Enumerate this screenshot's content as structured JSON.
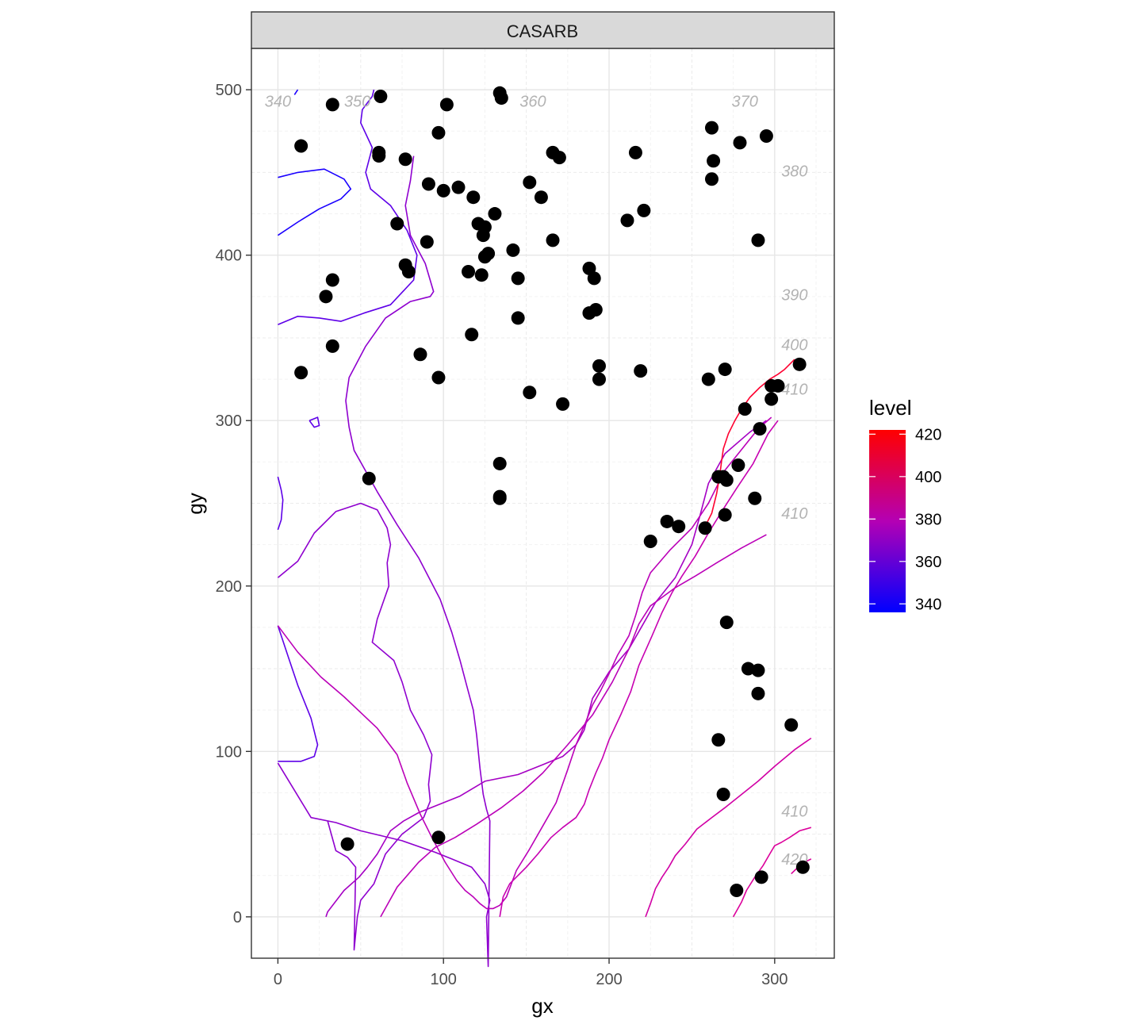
{
  "chart_data": {
    "type": "scatter",
    "facet_title": "CASARB",
    "xlabel": "gx",
    "ylabel": "gy",
    "xlim": [
      -16,
      336
    ],
    "ylim": [
      -25,
      525
    ],
    "x_ticks": [
      0,
      100,
      200,
      300
    ],
    "y_ticks": [
      0,
      100,
      200,
      300,
      400,
      500
    ],
    "x_tick_labels": [
      "0",
      "100",
      "200",
      "300"
    ],
    "y_tick_labels": [
      "0",
      "100",
      "200",
      "300",
      "400",
      "500"
    ],
    "grid": true,
    "legend": {
      "title": "level",
      "placement": "right",
      "min": 336,
      "max": 422,
      "ticks": [
        340,
        360,
        380,
        400,
        420
      ],
      "tick_labels": [
        "340",
        "360",
        "380",
        "400",
        "420"
      ],
      "color_low": "#0000ff",
      "color_high": "#ff0000"
    },
    "points": {
      "color": "#000000",
      "x": [
        14,
        33,
        62,
        102,
        134,
        135,
        97,
        61,
        61,
        77,
        91,
        100,
        109,
        118,
        131,
        121,
        125,
        124,
        125,
        127,
        72,
        77,
        79,
        90,
        33,
        29,
        115,
        123,
        134,
        142,
        145,
        117,
        33,
        86,
        97,
        14,
        55,
        134,
        134,
        145,
        152,
        159,
        166,
        170,
        172,
        166,
        152,
        188,
        191,
        192,
        188,
        194,
        194,
        211,
        216,
        221,
        219,
        262,
        263,
        262,
        279,
        295,
        290,
        260,
        270,
        298,
        302,
        298,
        315,
        282,
        291,
        278,
        266,
        269,
        271,
        288,
        270,
        235,
        242,
        258,
        225,
        271,
        284,
        290,
        290,
        310,
        266,
        269,
        42,
        97,
        277,
        292,
        317
      ],
      "y": [
        466,
        491,
        496,
        491,
        498,
        495,
        474,
        462,
        460,
        458,
        443,
        439,
        441,
        435,
        425,
        419,
        417,
        412,
        399,
        401,
        419,
        394,
        390,
        408,
        385,
        375,
        390,
        388,
        274,
        403,
        386,
        352,
        345,
        340,
        326,
        329,
        265,
        254,
        253,
        362,
        317,
        435,
        462,
        459,
        310,
        409,
        444,
        392,
        386,
        367,
        365,
        333,
        325,
        421,
        462,
        427,
        330,
        477,
        457,
        446,
        468,
        472,
        409,
        325,
        331,
        321,
        321,
        313,
        334,
        307,
        295,
        273,
        266,
        266,
        264,
        253,
        243,
        239,
        236,
        235,
        227,
        178,
        150,
        149,
        135,
        116,
        107,
        74,
        44,
        48,
        16,
        24,
        30
      ]
    },
    "contours": [
      {
        "level": 340,
        "color": "#1a00ff",
        "x": [
          0,
          12,
          25,
          38,
          44,
          40,
          28,
          12,
          0
        ],
        "y": [
          412,
          420,
          428,
          434,
          440,
          446,
          452,
          450,
          447
        ]
      },
      {
        "level": 340,
        "color": "#1a00ff",
        "x": [
          10,
          12
        ],
        "y": [
          497,
          500
        ]
      },
      {
        "level": 350,
        "color": "#5e00e8",
        "x": [
          0,
          12,
          25,
          38,
          52,
          68,
          82,
          84,
          78,
          68,
          56,
          53,
          57,
          50,
          51,
          57,
          58
        ],
        "y": [
          358,
          363,
          362,
          360,
          365,
          370,
          385,
          400,
          415,
          430,
          440,
          450,
          465,
          480,
          488,
          496,
          500
        ]
      },
      {
        "level": 350,
        "color": "#5e00e8",
        "x": [
          0,
          2,
          3,
          2,
          0
        ],
        "y": [
          266,
          258,
          252,
          240,
          234
        ]
      },
      {
        "level": 350,
        "color": "#5e00e8",
        "x": [
          0,
          6,
          12,
          20,
          24,
          22,
          14,
          9,
          0
        ],
        "y": [
          176,
          158,
          140,
          120,
          104,
          97,
          94,
          94,
          94
        ]
      },
      {
        "level": 350,
        "color": "#5e00e8",
        "x": [
          19,
          24,
          25,
          22,
          19
        ],
        "y": [
          300,
          302,
          297,
          296,
          300
        ]
      },
      {
        "level": 360,
        "color": "#8f00cf",
        "x": [
          0,
          12,
          22,
          35,
          50,
          60,
          66,
          68,
          66,
          67,
          60,
          57,
          70,
          75,
          80,
          88,
          93,
          91,
          92,
          88,
          75,
          65,
          58,
          50,
          48,
          46,
          47,
          42,
          35,
          30
        ],
        "y": [
          205,
          215,
          232,
          245,
          250,
          246,
          235,
          225,
          214,
          200,
          180,
          166,
          155,
          142,
          125,
          110,
          98,
          80,
          70,
          60,
          50,
          38,
          20,
          10,
          0,
          -20,
          30,
          36,
          40,
          58
        ]
      },
      {
        "level": 360,
        "color": "#8f00cf",
        "x": [
          0,
          20,
          35,
          50,
          75,
          95,
          105,
          117,
          125,
          128,
          126,
          127,
          128,
          126,
          124,
          122,
          120,
          118,
          114,
          110,
          105,
          98,
          85,
          72,
          60,
          46,
          43,
          41,
          43,
          53,
          65,
          80,
          92,
          94,
          89,
          80,
          77,
          80,
          82
        ],
        "y": [
          93,
          60,
          57,
          52,
          46,
          39,
          35,
          30,
          20,
          10,
          0,
          -30,
          58,
          65,
          74,
          90,
          110,
          125,
          140,
          155,
          172,
          192,
          217,
          237,
          257,
          282,
          296,
          312,
          326,
          345,
          362,
          372,
          375,
          378,
          395,
          412,
          430,
          445,
          460
        ]
      },
      {
        "level": 365,
        "color": "#a500c4",
        "x": [
          29,
          30,
          40,
          49,
          54,
          60,
          68,
          76,
          85,
          95,
          110,
          125,
          145,
          160,
          172,
          180,
          185,
          190,
          200,
          212,
          220,
          228,
          240,
          250,
          255,
          260,
          270,
          285,
          295
        ],
        "y": [
          0,
          3,
          16,
          24,
          30,
          38,
          52,
          58,
          63,
          67,
          73,
          82,
          86,
          92,
          97,
          104,
          113,
          132,
          148,
          162,
          176,
          190,
          205,
          225,
          243,
          262,
          280,
          293,
          300
        ]
      },
      {
        "level": 370,
        "color": "#bb00b8",
        "x": [
          62,
          72,
          85,
          95,
          107,
          120,
          135,
          148,
          160,
          175,
          190,
          202,
          212,
          218,
          225,
          240,
          252,
          265,
          280,
          295
        ],
        "y": [
          0,
          18,
          33,
          42,
          48,
          56,
          66,
          76,
          87,
          104,
          122,
          142,
          162,
          177,
          188,
          199,
          206,
          214,
          223,
          231
        ]
      },
      {
        "level": 370,
        "color": "#bb00b8",
        "x": [
          0,
          12,
          26,
          40,
          60,
          72,
          78,
          86,
          93,
          101,
          108,
          113,
          118,
          122,
          126,
          130,
          134,
          138,
          144,
          152,
          160,
          168,
          175,
          180,
          186,
          190,
          195,
          200,
          205,
          212,
          216,
          220,
          225,
          237,
          250,
          260,
          270,
          290,
          298
        ],
        "y": [
          176,
          160,
          145,
          133,
          114,
          98,
          81,
          62,
          48,
          33,
          22,
          16,
          12,
          8,
          5,
          5,
          7,
          12,
          28,
          41,
          55,
          69,
          89,
          104,
          118,
          128,
          137,
          147,
          158,
          170,
          182,
          196,
          208,
          222,
          235,
          250,
          270,
          295,
          302
        ]
      },
      {
        "level": 375,
        "color": "#c700b1",
        "x": [
          134,
          136,
          140,
          145,
          150,
          157,
          165,
          172,
          180,
          185,
          188,
          192,
          196,
          200,
          207,
          213,
          218,
          226,
          232,
          238,
          244,
          252,
          260,
          268,
          277,
          287,
          296,
          302
        ],
        "y": [
          0,
          12,
          20,
          25,
          30,
          38,
          48,
          54,
          60,
          68,
          77,
          87,
          96,
          107,
          122,
          136,
          152,
          170,
          184,
          196,
          206,
          218,
          232,
          245,
          259,
          274,
          292,
          300
        ]
      },
      {
        "level": 380,
        "color": "#d100a5",
        "x": [
          222,
          225,
          228,
          232,
          236,
          240,
          246,
          253,
          262,
          270,
          280,
          290,
          300,
          312,
          322
        ],
        "y": [
          0,
          8,
          17,
          24,
          30,
          37,
          44,
          53,
          60,
          66,
          74,
          82,
          91,
          101,
          108
        ]
      },
      {
        "level": 385,
        "color": "#dc009b",
        "x": [
          275,
          280,
          283,
          288,
          293,
          297,
          300,
          304,
          309,
          315,
          322
        ],
        "y": [
          0,
          9,
          16,
          24,
          31,
          38,
          43,
          45,
          48,
          52,
          54
        ]
      },
      {
        "level": 385,
        "color": "#dc009b",
        "x": [
          310,
          313,
          318,
          322
        ],
        "y": [
          26,
          29,
          33,
          35
        ]
      },
      {
        "level": 410,
        "color": "#ff0030",
        "x": [
          258,
          262,
          265,
          267,
          268,
          269,
          272,
          276,
          280,
          285,
          291,
          297,
          302,
          306,
          312
        ],
        "y": [
          236,
          244,
          256,
          268,
          276,
          283,
          292,
          300,
          307,
          314,
          320,
          325,
          328,
          331,
          337
        ]
      }
    ],
    "contour_labels": [
      {
        "text": "340",
        "x": 0,
        "y": 493
      },
      {
        "text": "350",
        "x": 48,
        "y": 493
      },
      {
        "text": "360",
        "x": 154,
        "y": 493
      },
      {
        "text": "370",
        "x": 282,
        "y": 493
      },
      {
        "text": "380",
        "x": 312,
        "y": 451
      },
      {
        "text": "390",
        "x": 312,
        "y": 376
      },
      {
        "text": "400",
        "x": 312,
        "y": 346
      },
      {
        "text": "410",
        "x": 312,
        "y": 319
      },
      {
        "text": "410",
        "x": 312,
        "y": 244
      },
      {
        "text": "410",
        "x": 312,
        "y": 64
      },
      {
        "text": "420",
        "x": 312,
        "y": 35
      }
    ]
  }
}
